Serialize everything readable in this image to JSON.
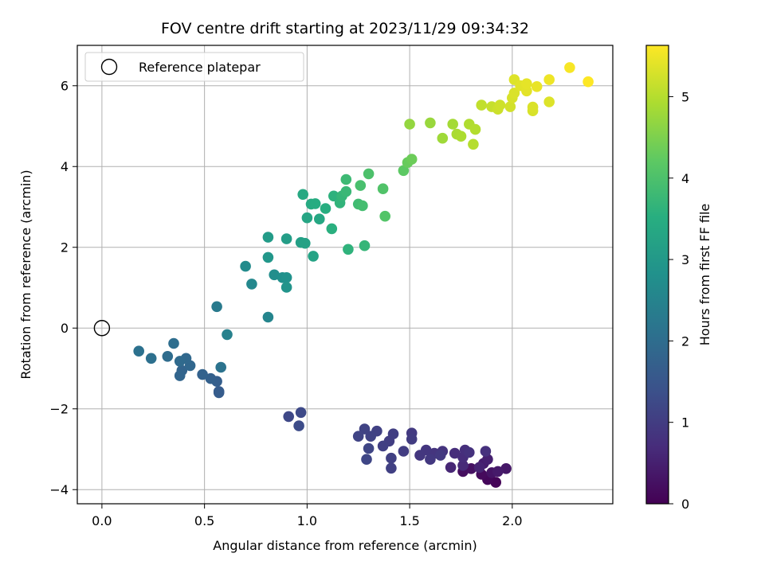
{
  "chart_data": {
    "type": "scatter",
    "title": "FOV centre drift starting at 2023/11/29 09:34:32",
    "xlabel": "Angular distance from reference (arcmin)",
    "ylabel": "Rotation from reference (arcmin)",
    "xlim": [
      -0.12,
      2.49
    ],
    "ylim": [
      -4.35,
      7.0
    ],
    "xticks": [
      0.0,
      0.5,
      1.0,
      1.5,
      2.0
    ],
    "xtick_labels": [
      "0.0",
      "0.5",
      "1.0",
      "1.5",
      "2.0"
    ],
    "yticks": [
      -4,
      -2,
      0,
      2,
      4,
      6
    ],
    "ytick_labels": [
      "−4",
      "−2",
      "0",
      "2",
      "4",
      "6"
    ],
    "grid": true,
    "legend": {
      "placement": "top-left",
      "entries": [
        "Reference platepar"
      ]
    },
    "reference_point": {
      "x": 0.0,
      "y": 0.0
    },
    "colorbar": {
      "label": "Hours from first FF file",
      "colormap": "viridis",
      "range": [
        0,
        5.63
      ],
      "ticks": [
        0,
        1,
        2,
        3,
        4,
        5
      ],
      "tick_labels": [
        "0",
        "1",
        "2",
        "3",
        "4",
        "5"
      ]
    },
    "points": [
      [
        1.92,
        -3.82,
        0.05
      ],
      [
        1.88,
        -3.75,
        0.1
      ],
      [
        1.85,
        -3.62,
        0.15
      ],
      [
        1.76,
        -3.55,
        0.2
      ],
      [
        1.8,
        -3.48,
        0.25
      ],
      [
        1.9,
        -3.58,
        0.3
      ],
      [
        1.97,
        -3.48,
        0.35
      ],
      [
        1.93,
        -3.55,
        0.4
      ],
      [
        1.86,
        -3.35,
        0.45
      ],
      [
        1.88,
        -3.25,
        0.5
      ],
      [
        1.84,
        -3.45,
        0.55
      ],
      [
        1.7,
        -3.45,
        0.6
      ],
      [
        1.76,
        -3.4,
        0.65
      ],
      [
        1.76,
        -3.2,
        0.7
      ],
      [
        1.72,
        -3.1,
        0.72
      ],
      [
        1.77,
        -3.02,
        0.75
      ],
      [
        1.87,
        -3.05,
        0.78
      ],
      [
        1.79,
        -3.08,
        0.8
      ],
      [
        1.66,
        -3.05,
        0.83
      ],
      [
        1.62,
        -3.1,
        0.85
      ],
      [
        1.58,
        -3.02,
        0.88
      ],
      [
        1.55,
        -3.15,
        0.9
      ],
      [
        1.6,
        -3.25,
        0.92
      ],
      [
        1.65,
        -3.15,
        0.94
      ],
      [
        1.51,
        -2.6,
        0.96
      ],
      [
        1.51,
        -2.75,
        0.98
      ],
      [
        1.47,
        -3.05,
        1.0
      ],
      [
        1.4,
        -2.8,
        1.02
      ],
      [
        1.42,
        -2.62,
        1.03
      ],
      [
        1.37,
        -2.92,
        1.05
      ],
      [
        1.41,
        -3.22,
        1.06
      ],
      [
        1.41,
        -3.47,
        1.07
      ],
      [
        1.34,
        -2.55,
        1.08
      ],
      [
        1.31,
        -2.68,
        1.1
      ],
      [
        1.28,
        -2.5,
        1.12
      ],
      [
        1.25,
        -2.68,
        1.14
      ],
      [
        1.3,
        -2.98,
        1.16
      ],
      [
        1.29,
        -3.25,
        1.18
      ],
      [
        0.91,
        -2.19,
        1.22
      ],
      [
        0.97,
        -2.09,
        1.26
      ],
      [
        0.96,
        -2.42,
        1.3
      ],
      [
        0.57,
        -1.57,
        1.6
      ],
      [
        0.57,
        -1.6,
        1.62
      ],
      [
        0.56,
        -1.32,
        1.68
      ],
      [
        0.53,
        -1.25,
        1.72
      ],
      [
        0.49,
        -1.15,
        1.76
      ],
      [
        0.39,
        -1.05,
        1.8
      ],
      [
        0.38,
        -1.18,
        1.82
      ],
      [
        0.43,
        -0.93,
        1.86
      ],
      [
        0.41,
        -0.75,
        1.9
      ],
      [
        0.38,
        -0.82,
        1.94
      ],
      [
        0.32,
        -0.7,
        1.98
      ],
      [
        0.35,
        -0.38,
        2.02
      ],
      [
        0.24,
        -0.75,
        2.06
      ],
      [
        0.18,
        -0.57,
        2.1
      ],
      [
        0.58,
        -0.97,
        2.14
      ],
      [
        0.56,
        0.53,
        2.3
      ],
      [
        0.61,
        -0.16,
        2.45
      ],
      [
        0.81,
        0.27,
        2.55
      ],
      [
        0.73,
        1.09,
        2.62
      ],
      [
        0.7,
        1.53,
        2.68
      ],
      [
        0.84,
        1.32,
        2.74
      ],
      [
        0.88,
        1.25,
        2.8
      ],
      [
        0.9,
        1.25,
        2.84
      ],
      [
        0.9,
        1.01,
        2.88
      ],
      [
        0.81,
        1.75,
        2.95
      ],
      [
        0.81,
        2.25,
        3.05
      ],
      [
        0.9,
        2.21,
        3.1
      ],
      [
        0.97,
        2.12,
        3.15
      ],
      [
        0.99,
        2.1,
        3.2
      ],
      [
        1.03,
        1.78,
        3.25
      ],
      [
        1.0,
        2.73,
        3.3
      ],
      [
        1.06,
        2.7,
        3.34
      ],
      [
        0.98,
        3.31,
        3.38
      ],
      [
        1.02,
        3.07,
        3.42
      ],
      [
        1.04,
        3.08,
        3.46
      ],
      [
        1.09,
        2.96,
        3.5
      ],
      [
        1.12,
        2.46,
        3.55
      ],
      [
        1.13,
        3.27,
        3.6
      ],
      [
        1.16,
        3.1,
        3.65
      ],
      [
        1.17,
        3.27,
        3.7
      ],
      [
        1.19,
        3.38,
        3.75
      ],
      [
        1.19,
        3.68,
        3.8
      ],
      [
        1.2,
        1.95,
        3.62
      ],
      [
        1.25,
        3.07,
        3.85
      ],
      [
        1.27,
        3.03,
        3.9
      ],
      [
        1.28,
        2.04,
        3.7
      ],
      [
        1.26,
        3.53,
        3.95
      ],
      [
        1.3,
        3.82,
        4.0
      ],
      [
        1.37,
        3.45,
        4.05
      ],
      [
        1.38,
        2.77,
        4.08
      ],
      [
        1.47,
        3.9,
        4.2
      ],
      [
        1.49,
        4.1,
        4.3
      ],
      [
        1.51,
        4.18,
        4.35
      ],
      [
        1.5,
        5.05,
        4.7
      ],
      [
        1.6,
        5.08,
        4.75
      ],
      [
        1.66,
        4.7,
        4.8
      ],
      [
        1.71,
        5.05,
        4.85
      ],
      [
        1.73,
        4.8,
        4.9
      ],
      [
        1.75,
        4.75,
        4.92
      ],
      [
        1.79,
        5.05,
        4.95
      ],
      [
        1.82,
        4.92,
        4.98
      ],
      [
        1.81,
        4.55,
        5.0
      ],
      [
        1.85,
        5.52,
        5.1
      ],
      [
        1.9,
        5.48,
        5.15
      ],
      [
        1.93,
        5.42,
        5.2
      ],
      [
        1.94,
        5.52,
        5.22
      ],
      [
        1.99,
        5.48,
        5.25
      ],
      [
        2.0,
        5.7,
        5.3
      ],
      [
        2.01,
        5.82,
        5.32
      ],
      [
        2.01,
        6.15,
        5.35
      ],
      [
        2.04,
        6.0,
        5.38
      ],
      [
        2.07,
        5.87,
        5.4
      ],
      [
        2.07,
        6.05,
        5.42
      ],
      [
        2.1,
        5.38,
        5.3
      ],
      [
        2.1,
        5.47,
        5.32
      ],
      [
        2.12,
        5.98,
        5.45
      ],
      [
        2.18,
        5.6,
        5.35
      ],
      [
        2.18,
        6.15,
        5.5
      ],
      [
        2.28,
        6.45,
        5.58
      ],
      [
        2.37,
        6.1,
        5.63
      ]
    ]
  }
}
